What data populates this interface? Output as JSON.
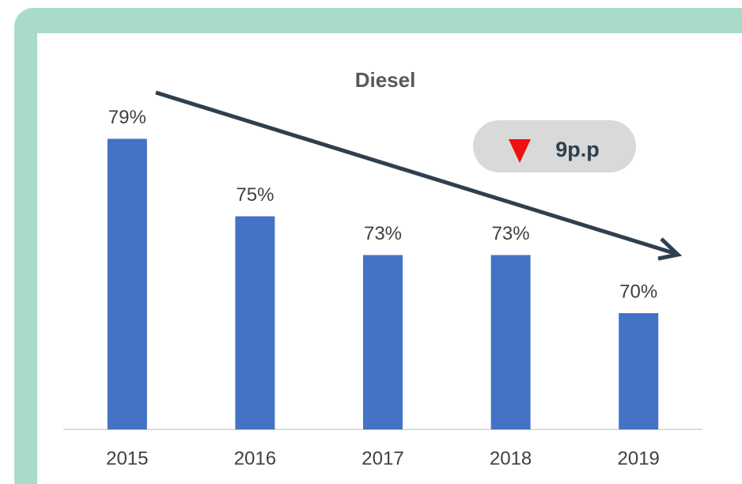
{
  "chart_data": {
    "type": "bar",
    "title": "Diesel",
    "categories": [
      "2015",
      "2016",
      "2017",
      "2018",
      "2019"
    ],
    "values": [
      79,
      75,
      73,
      73,
      70
    ],
    "value_labels": [
      "79%",
      "75%",
      "73%",
      "73%",
      "70%"
    ],
    "color": "#4472c4",
    "ylim": [
      64,
      80
    ],
    "annotation": "9p.p"
  }
}
